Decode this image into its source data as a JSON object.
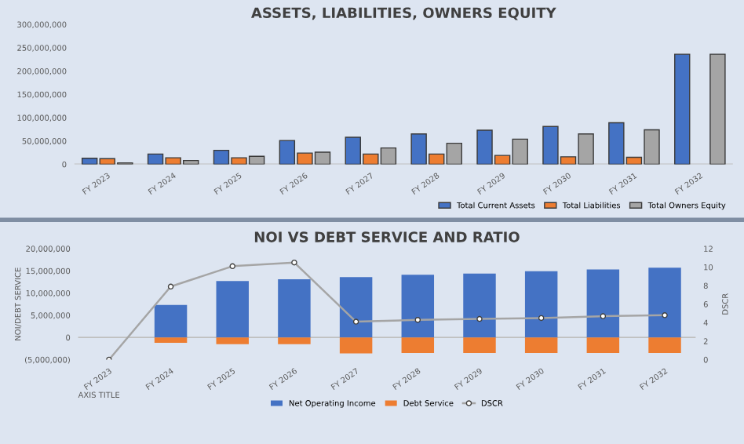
{
  "chart_data": [
    {
      "type": "bar",
      "title": "ASSETS, LIABILITIES, OWNERS EQUITY",
      "categories": [
        "FY 2023",
        "FY 2024",
        "FY 2025",
        "FY 2026",
        "FY 2027",
        "FY 2028",
        "FY 2029",
        "FY 2030",
        "FY 2031",
        "FY 2032"
      ],
      "series": [
        {
          "name": "Total Current Assets",
          "color": "#4472c4",
          "values": [
            13000000,
            22000000,
            30000000,
            51000000,
            58000000,
            65000000,
            73000000,
            81000000,
            89000000,
            236000000
          ]
        },
        {
          "name": "Total Liabilities",
          "color": "#ed7d31",
          "values": [
            12000000,
            14000000,
            14000000,
            24000000,
            22000000,
            22000000,
            19000000,
            16000000,
            15000000,
            null
          ]
        },
        {
          "name": "Total Owners Equity",
          "color": "#a5a5a5",
          "values": [
            3000000,
            8000000,
            17000000,
            26000000,
            35000000,
            45000000,
            54000000,
            65000000,
            74000000,
            236000000
          ]
        }
      ],
      "ylim": [
        0,
        300000000
      ],
      "yticks": [
        {
          "value": 0,
          "label": "0"
        },
        {
          "value": 50000000,
          "label": "50,000,000"
        },
        {
          "value": 100000000,
          "label": "100,000,000"
        },
        {
          "value": 150000000,
          "label": "150,000,000"
        },
        {
          "value": 200000000,
          "label": "200,000,000"
        },
        {
          "value": 250000000,
          "label": "250,000,000"
        },
        {
          "value": 300000000,
          "label": "300,000,000"
        }
      ],
      "legend": "bottom right"
    },
    {
      "type": "bar",
      "title": "NOI VS DEBT SERVICE AND RATIO",
      "xlabel": "AXIS TITLE",
      "ylabel": "NOI/DEBT SERVICE",
      "y2label": "DSCR",
      "stacked": true,
      "categories": [
        "FY 2023",
        "FY 2024",
        "FY 2025",
        "FY 2026",
        "FY 2027",
        "FY 2028",
        "FY 2029",
        "FY 2030",
        "FY 2031",
        "FY 2032"
      ],
      "series": [
        {
          "name": "Net Operating Income",
          "color": "#4472c4",
          "values": [
            0,
            7300000,
            12700000,
            13100000,
            13600000,
            14100000,
            14400000,
            14900000,
            15300000,
            15700000
          ]
        },
        {
          "name": "Debt Service",
          "color": "#ed7d31",
          "values": [
            0,
            -1200000,
            -1500000,
            -1500000,
            -3600000,
            -3500000,
            -3500000,
            -3500000,
            -3500000,
            -3500000
          ]
        },
        {
          "name": "DSCR",
          "type": "line",
          "axis": "y2",
          "color": "#a5a5a5",
          "marker": "circle",
          "values": [
            0,
            7.9,
            10.1,
            10.5,
            4.1,
            4.3,
            4.4,
            4.5,
            4.7,
            4.8
          ]
        }
      ],
      "ylim": [
        -5000000,
        20000000
      ],
      "yticks": [
        {
          "value": -5000000,
          "label": "(5,000,000)"
        },
        {
          "value": 0,
          "label": "0"
        },
        {
          "value": 5000000,
          "label": "5,000,000"
        },
        {
          "value": 10000000,
          "label": "10,000,000"
        },
        {
          "value": 15000000,
          "label": "15,000,000"
        },
        {
          "value": 20000000,
          "label": "20,000,000"
        }
      ],
      "y2lim": [
        0,
        12
      ],
      "y2ticks": [
        0,
        2,
        4,
        6,
        8,
        10,
        12
      ],
      "legend": "bottom"
    }
  ]
}
